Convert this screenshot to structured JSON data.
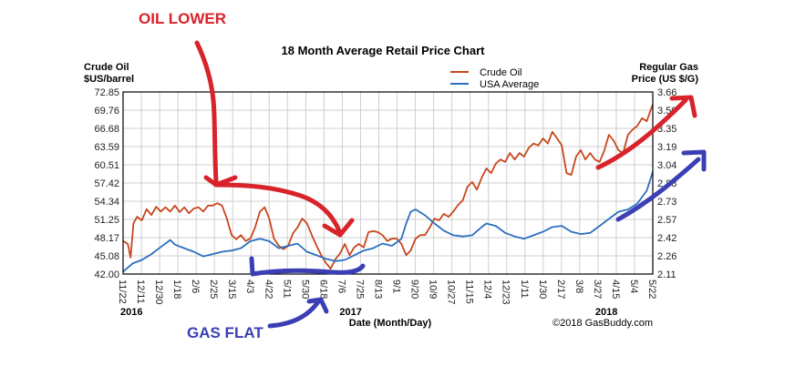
{
  "chart_data": {
    "type": "line",
    "title": "18 Month Average Retail Price Chart",
    "xlabel": "Date (Month/Day)",
    "ylabel_left": [
      "Crude Oil",
      "$US/barrel"
    ],
    "ylabel_right": [
      "Regular Gas",
      "Price (US $/G)"
    ],
    "ylim_left": [
      42.0,
      72.85
    ],
    "ylim_right": [
      2.11,
      3.66
    ],
    "yticks_left": [
      "72.85",
      "69.76",
      "66.68",
      "63.59",
      "60.51",
      "57.42",
      "54.34",
      "51.25",
      "48.17",
      "45.08",
      "42.00"
    ],
    "yticks_right": [
      "3.66",
      "3.50",
      "3.35",
      "3.19",
      "3.04",
      "2.88",
      "2.73",
      "2.57",
      "2.42",
      "2.26",
      "2.11"
    ],
    "xticks": [
      "11/22",
      "12/11",
      "12/30",
      "1/18",
      "2/6",
      "2/25",
      "3/15",
      "4/3",
      "4/22",
      "5/11",
      "5/30",
      "6/18",
      "7/6",
      "7/25",
      "8/13",
      "9/1",
      "9/20",
      "10/9",
      "10/27",
      "11/15",
      "12/4",
      "12/23",
      "1/11",
      "1/30",
      "2/17",
      "3/8",
      "3/27",
      "4/15",
      "5/4",
      "5/22"
    ],
    "year_labels": [
      {
        "label": "2016",
        "at_tick": 0
      },
      {
        "label": "2017",
        "at_tick": 12
      },
      {
        "label": "2018",
        "at_tick": 26
      }
    ],
    "grid": true,
    "legend_position": "top-right",
    "copyright": "©2018 GasBuddy.com",
    "x_index_range": [
      0,
      29
    ],
    "series": [
      {
        "name": "Crude Oil",
        "axis": "left",
        "color": "#c8461e",
        "x": [
          0,
          0.26,
          0.41,
          0.57,
          0.77,
          1.03,
          1.29,
          1.55,
          1.81,
          2.06,
          2.32,
          2.58,
          2.84,
          3.1,
          3.35,
          3.61,
          3.87,
          4.13,
          4.39,
          4.65,
          4.9,
          5.16,
          5.42,
          5.68,
          5.94,
          6.2,
          6.45,
          6.71,
          6.97,
          7.23,
          7.49,
          7.75,
          8.0,
          8.26,
          8.52,
          8.78,
          9.04,
          9.3,
          9.55,
          9.81,
          10.07,
          10.33,
          10.59,
          10.85,
          11.1,
          11.36,
          11.62,
          11.88,
          12.14,
          12.4,
          12.65,
          12.91,
          13.17,
          13.43,
          13.69,
          13.95,
          14.2,
          14.46,
          14.72,
          14.98,
          15.24,
          15.5,
          15.75,
          16.01,
          16.27,
          16.53,
          16.79,
          17.05,
          17.3,
          17.56,
          17.82,
          18.08,
          18.34,
          18.6,
          18.85,
          19.11,
          19.37,
          19.63,
          19.89,
          20.15,
          20.4,
          20.66,
          20.92,
          21.18,
          21.44,
          21.7,
          21.95,
          22.21,
          22.47,
          22.73,
          22.99,
          23.25,
          23.5,
          23.76,
          24.02,
          24.28,
          24.54,
          24.8,
          25.05,
          25.31,
          25.57,
          25.83,
          26.09,
          26.35,
          26.6,
          26.86,
          27.12,
          27.38,
          27.64,
          27.9,
          28.15,
          28.41,
          28.67,
          28.93,
          29.0
        ],
        "values": [
          47.6,
          47.1,
          44.8,
          50.6,
          51.7,
          51.1,
          53.0,
          52.0,
          53.4,
          52.6,
          53.3,
          52.6,
          53.6,
          52.5,
          53.3,
          52.3,
          53.1,
          53.3,
          52.6,
          53.6,
          53.6,
          54.0,
          53.6,
          51.4,
          48.6,
          47.9,
          48.6,
          47.6,
          48.0,
          49.9,
          52.6,
          53.3,
          51.4,
          48.0,
          46.8,
          46.2,
          46.8,
          48.9,
          49.9,
          51.4,
          50.6,
          48.6,
          46.8,
          45.2,
          43.9,
          42.9,
          44.5,
          45.5,
          47.1,
          45.2,
          46.5,
          47.1,
          46.5,
          49.1,
          49.3,
          49.1,
          48.6,
          47.6,
          48.0,
          48.0,
          47.1,
          45.2,
          46.0,
          48.0,
          48.6,
          48.6,
          49.9,
          51.4,
          51.1,
          52.2,
          51.7,
          52.6,
          53.7,
          54.5,
          56.8,
          57.6,
          56.3,
          58.3,
          59.9,
          59.1,
          60.7,
          61.4,
          61.0,
          62.5,
          61.4,
          62.5,
          61.9,
          63.4,
          64.1,
          63.8,
          65.0,
          64.1,
          66.1,
          65.0,
          63.8,
          59.1,
          58.8,
          61.9,
          63.0,
          61.4,
          62.5,
          61.4,
          61.0,
          63.0,
          65.6,
          64.6,
          63.0,
          62.5,
          65.6,
          66.5,
          67.1,
          68.4,
          67.9,
          70.2,
          70.7
        ]
      },
      {
        "name": "USA Average",
        "axis": "right",
        "color": "#2a6fbf",
        "x": [
          0,
          0.52,
          1.03,
          1.55,
          2.06,
          2.58,
          2.84,
          3.35,
          3.87,
          4.39,
          4.9,
          5.42,
          5.94,
          6.45,
          6.97,
          7.49,
          8.0,
          8.52,
          9.04,
          9.55,
          10.07,
          10.59,
          11.1,
          11.62,
          12.14,
          12.65,
          13.17,
          13.69,
          14.2,
          14.72,
          15.24,
          15.5,
          15.75,
          16.01,
          16.53,
          17.05,
          17.56,
          18.08,
          18.6,
          19.11,
          19.63,
          19.89,
          20.4,
          20.92,
          21.44,
          21.95,
          22.47,
          22.99,
          23.5,
          24.02,
          24.54,
          25.05,
          25.57,
          26.09,
          26.6,
          27.12,
          27.64,
          28.15,
          28.67,
          29.0
        ],
        "values": [
          2.13,
          2.2,
          2.23,
          2.28,
          2.34,
          2.4,
          2.36,
          2.33,
          2.3,
          2.26,
          2.28,
          2.3,
          2.31,
          2.33,
          2.39,
          2.41,
          2.39,
          2.33,
          2.35,
          2.37,
          2.3,
          2.27,
          2.24,
          2.22,
          2.23,
          2.27,
          2.31,
          2.33,
          2.37,
          2.35,
          2.41,
          2.54,
          2.64,
          2.66,
          2.61,
          2.54,
          2.48,
          2.44,
          2.43,
          2.44,
          2.51,
          2.54,
          2.52,
          2.46,
          2.43,
          2.41,
          2.44,
          2.47,
          2.51,
          2.52,
          2.47,
          2.45,
          2.46,
          2.52,
          2.58,
          2.64,
          2.66,
          2.71,
          2.82,
          2.98
        ]
      }
    ]
  },
  "annotations": {
    "oil_label": "OIL LOWER",
    "gas_label": "GAS FLAT",
    "oil_color": "#d8232a",
    "gas_color": "#3b3fb5"
  }
}
